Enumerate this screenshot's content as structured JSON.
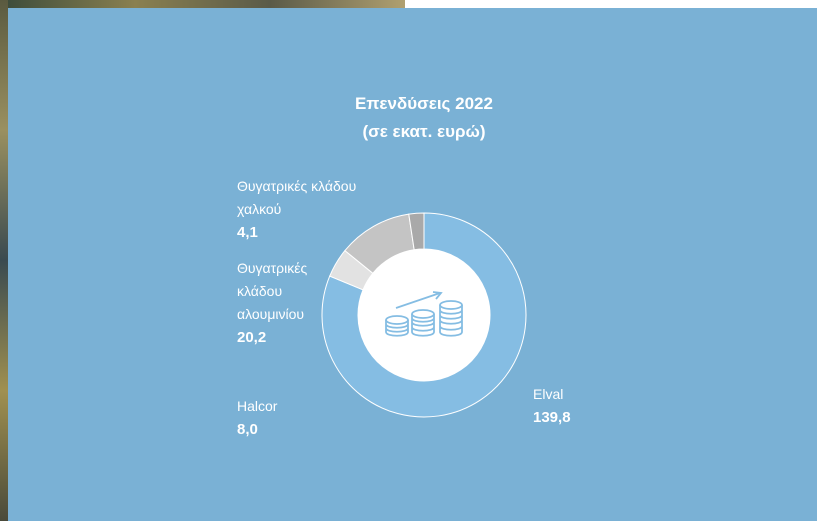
{
  "chart_data": {
    "type": "donut",
    "title": "Επενδύσεις 2022",
    "subtitle": "(σε εκατ. ευρώ)",
    "categories": [
      "Elval",
      "Halcor",
      "Θυγατρικές κλάδου αλουμινίου",
      "Θυγατρικές κλάδου χαλκού"
    ],
    "values": [
      139.8,
      8.0,
      20.2,
      4.1
    ],
    "value_labels": [
      "139,8",
      "8,0",
      "20,2",
      "4,1"
    ],
    "colors": [
      "#85bde3",
      "#e2e2e2",
      "#c4c4c4",
      "#a9a9a9"
    ]
  }
}
